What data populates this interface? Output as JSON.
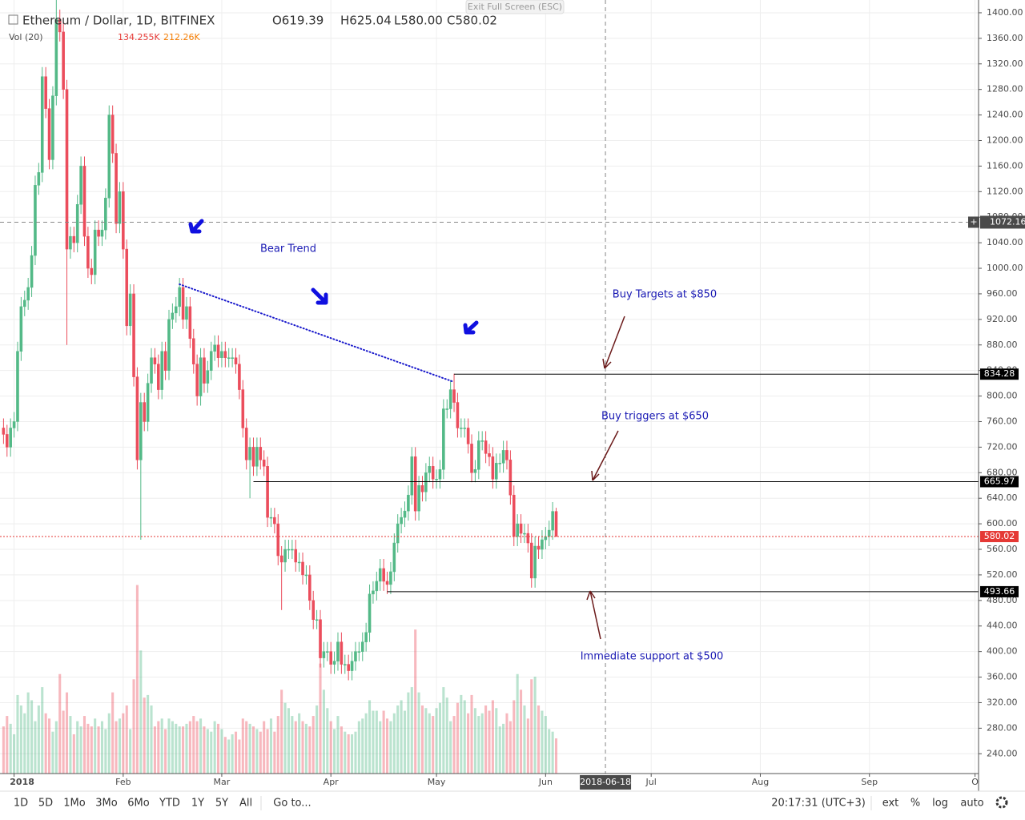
{
  "chart_data": {
    "type": "candlestick",
    "title": "Ethereum / Dollar, 1D, BITFINEX",
    "ohlc_legend": [
      "O619.39",
      "H625.04",
      "L580.00",
      "C580.02"
    ],
    "volume_title": "Vol (20)",
    "volume_legend": [
      "134.255K",
      "212.26K"
    ],
    "exit_button": "Exit Full Screen (ESC)",
    "up_color": "#53b987",
    "down_color": "#eb4d5c",
    "xlim": [
      "2017-12-28",
      "2018-10-02"
    ],
    "ylim": [
      209,
      1420
    ],
    "grid": true,
    "xticks": [
      {
        "value": "2018-01-01",
        "label": "2018"
      },
      {
        "value": "2018-02-01",
        "label": "Feb"
      },
      {
        "value": "2018-03-01",
        "label": "Mar"
      },
      {
        "value": "2018-04-01",
        "label": "Apr"
      },
      {
        "value": "2018-05-01",
        "label": "May"
      },
      {
        "value": "2018-06-01",
        "label": "Jun"
      },
      {
        "value": "2018-07-01",
        "label": "Jul"
      },
      {
        "value": "2018-08-01",
        "label": "Aug"
      },
      {
        "value": "2018-09-01",
        "label": "Sep"
      },
      {
        "value": "2018-10-01",
        "label": "O"
      }
    ],
    "yticks": [
      {
        "value": 240,
        "label": "240.00"
      },
      {
        "value": 280,
        "label": "280.00"
      },
      {
        "value": 320,
        "label": "320.00"
      },
      {
        "value": 360,
        "label": "360.00"
      },
      {
        "value": 400,
        "label": "400.00"
      },
      {
        "value": 440,
        "label": "440.00"
      },
      {
        "value": 480,
        "label": "480.00"
      },
      {
        "value": 520,
        "label": "520.00"
      },
      {
        "value": 560,
        "label": "560.00"
      },
      {
        "value": 600,
        "label": "600.00"
      },
      {
        "value": 640,
        "label": "640.00"
      },
      {
        "value": 680,
        "label": "680.00"
      },
      {
        "value": 720,
        "label": "720.00"
      },
      {
        "value": 760,
        "label": "760.00"
      },
      {
        "value": 800,
        "label": "800.00"
      },
      {
        "value": 840,
        "label": "840.00"
      },
      {
        "value": 880,
        "label": "880.00"
      },
      {
        "value": 920,
        "label": "920.00"
      },
      {
        "value": 960,
        "label": "960.00"
      },
      {
        "value": 1000,
        "label": "1000.00"
      },
      {
        "value": 1040,
        "label": "1040.00"
      },
      {
        "value": 1080,
        "label": "1080.00"
      },
      {
        "value": 1120,
        "label": "1120.00"
      },
      {
        "value": 1160,
        "label": "1160.00"
      },
      {
        "value": 1200,
        "label": "1200.00"
      },
      {
        "value": 1240,
        "label": "1240.00"
      },
      {
        "value": 1280,
        "label": "1280.00"
      },
      {
        "value": 1320,
        "label": "1320.00"
      },
      {
        "value": 1360,
        "label": "1360.00"
      },
      {
        "value": 1400,
        "label": "1400.00"
      }
    ],
    "x": [
      "2017-12-29",
      "2017-12-30",
      "2017-12-31",
      "2018-01-01",
      "2018-01-02",
      "2018-01-03",
      "2018-01-04",
      "2018-01-05",
      "2018-01-06",
      "2018-01-07",
      "2018-01-08",
      "2018-01-09",
      "2018-01-10",
      "2018-01-11",
      "2018-01-12",
      "2018-01-13",
      "2018-01-14",
      "2018-01-15",
      "2018-01-16",
      "2018-01-17",
      "2018-01-18",
      "2018-01-19",
      "2018-01-20",
      "2018-01-21",
      "2018-01-22",
      "2018-01-23",
      "2018-01-24",
      "2018-01-25",
      "2018-01-26",
      "2018-01-27",
      "2018-01-28",
      "2018-01-29",
      "2018-01-30",
      "2018-01-31",
      "2018-02-01",
      "2018-02-02",
      "2018-02-03",
      "2018-02-04",
      "2018-02-05",
      "2018-02-06",
      "2018-02-07",
      "2018-02-08",
      "2018-02-09",
      "2018-02-10",
      "2018-02-11",
      "2018-02-12",
      "2018-02-13",
      "2018-02-14",
      "2018-02-15",
      "2018-02-16",
      "2018-02-17",
      "2018-02-18",
      "2018-02-19",
      "2018-02-20",
      "2018-02-21",
      "2018-02-22",
      "2018-02-23",
      "2018-02-24",
      "2018-02-25",
      "2018-02-26",
      "2018-02-27",
      "2018-02-28",
      "2018-03-01",
      "2018-03-02",
      "2018-03-03",
      "2018-03-04",
      "2018-03-05",
      "2018-03-06",
      "2018-03-07",
      "2018-03-08",
      "2018-03-09",
      "2018-03-10",
      "2018-03-11",
      "2018-03-12",
      "2018-03-13",
      "2018-03-14",
      "2018-03-15",
      "2018-03-16",
      "2018-03-17",
      "2018-03-18",
      "2018-03-19",
      "2018-03-20",
      "2018-03-21",
      "2018-03-22",
      "2018-03-23",
      "2018-03-24",
      "2018-03-25",
      "2018-03-26",
      "2018-03-27",
      "2018-03-28",
      "2018-03-29",
      "2018-03-30",
      "2018-03-31",
      "2018-04-01",
      "2018-04-02",
      "2018-04-03",
      "2018-04-04",
      "2018-04-05",
      "2018-04-06",
      "2018-04-07",
      "2018-04-08",
      "2018-04-09",
      "2018-04-10",
      "2018-04-11",
      "2018-04-12",
      "2018-04-13",
      "2018-04-14",
      "2018-04-15",
      "2018-04-16",
      "2018-04-17",
      "2018-04-18",
      "2018-04-19",
      "2018-04-20",
      "2018-04-21",
      "2018-04-22",
      "2018-04-23",
      "2018-04-24",
      "2018-04-25",
      "2018-04-26",
      "2018-04-27",
      "2018-04-28",
      "2018-04-29",
      "2018-04-30",
      "2018-05-01",
      "2018-05-02",
      "2018-05-03",
      "2018-05-04",
      "2018-05-05",
      "2018-05-06",
      "2018-05-07",
      "2018-05-08",
      "2018-05-09",
      "2018-05-10",
      "2018-05-11",
      "2018-05-12",
      "2018-05-13",
      "2018-05-14",
      "2018-05-15",
      "2018-05-16",
      "2018-05-17",
      "2018-05-18",
      "2018-05-19",
      "2018-05-20",
      "2018-05-21",
      "2018-05-22",
      "2018-05-23",
      "2018-05-24",
      "2018-05-25",
      "2018-05-26",
      "2018-05-27",
      "2018-05-28",
      "2018-05-29",
      "2018-05-30",
      "2018-05-31",
      "2018-06-01",
      "2018-06-02",
      "2018-06-03",
      "2018-06-04"
    ],
    "open": [
      750,
      740,
      720,
      750,
      760,
      870,
      940,
      950,
      970,
      1020,
      1130,
      1150,
      1300,
      1250,
      1170,
      1270,
      1390,
      1370,
      1280,
      1030,
      1050,
      1040,
      1100,
      1160,
      1050,
      1000,
      990,
      1060,
      1050,
      1060,
      1110,
      1240,
      1180,
      1070,
      1120,
      1030,
      910,
      960,
      830,
      700,
      790,
      760,
      820,
      860,
      850,
      810,
      870,
      840,
      920,
      930,
      940,
      970,
      920,
      940,
      890,
      850,
      800,
      860,
      820,
      840,
      870,
      880,
      860,
      870,
      860,
      860,
      860,
      850,
      810,
      750,
      700,
      720,
      690,
      720,
      700,
      690,
      610,
      610,
      600,
      550,
      540,
      560,
      560,
      560,
      540,
      540,
      520,
      520,
      480,
      450,
      450,
      390,
      400,
      400,
      380,
      385,
      415,
      380,
      380,
      370,
      385,
      400,
      400,
      415,
      430,
      490,
      495,
      510,
      530,
      510,
      505,
      525,
      570,
      600,
      610,
      620,
      645,
      705,
      620,
      660,
      650,
      680,
      690,
      670,
      670,
      685,
      780,
      780,
      810,
      790,
      750,
      750,
      750,
      725,
      680,
      685,
      730,
      730,
      710,
      705,
      670,
      695,
      695,
      715,
      700,
      645,
      580,
      600,
      585,
      585,
      570,
      515,
      565,
      560,
      575,
      580,
      590,
      619.39
    ],
    "high": [
      765,
      755,
      765,
      775,
      885,
      955,
      965,
      985,
      1035,
      1145,
      1165,
      1315,
      1315,
      1265,
      1285,
      1420,
      1405,
      1385,
      1295,
      1065,
      1065,
      1115,
      1175,
      1175,
      1065,
      1015,
      1075,
      1075,
      1075,
      1125,
      1255,
      1255,
      1195,
      1135,
      1135,
      1045,
      975,
      975,
      845,
      805,
      805,
      835,
      875,
      875,
      865,
      885,
      885,
      935,
      945,
      955,
      985,
      985,
      955,
      955,
      905,
      865,
      875,
      875,
      855,
      885,
      895,
      895,
      885,
      885,
      875,
      875,
      875,
      865,
      825,
      765,
      735,
      735,
      735,
      735,
      715,
      705,
      625,
      625,
      615,
      565,
      575,
      575,
      575,
      575,
      555,
      555,
      535,
      535,
      495,
      465,
      465,
      415,
      415,
      415,
      400,
      430,
      430,
      395,
      395,
      400,
      415,
      415,
      430,
      445,
      505,
      510,
      525,
      545,
      545,
      525,
      540,
      585,
      615,
      625,
      635,
      660,
      720,
      720,
      675,
      675,
      695,
      705,
      705,
      685,
      700,
      795,
      795,
      825,
      835,
      805,
      765,
      765,
      765,
      740,
      700,
      745,
      745,
      745,
      725,
      720,
      710,
      710,
      730,
      730,
      715,
      660,
      615,
      615,
      600,
      600,
      585,
      580,
      580,
      590,
      595,
      605,
      634,
      625.04
    ],
    "low": [
      725,
      705,
      705,
      735,
      745,
      855,
      925,
      935,
      955,
      1005,
      1115,
      1135,
      1235,
      1155,
      1155,
      1255,
      1355,
      1265,
      880,
      1015,
      1025,
      1025,
      1085,
      1035,
      985,
      975,
      975,
      1035,
      1035,
      1045,
      1095,
      1165,
      1055,
      1055,
      1015,
      895,
      895,
      815,
      685,
      575,
      745,
      745,
      805,
      835,
      795,
      795,
      825,
      825,
      905,
      915,
      925,
      905,
      905,
      875,
      835,
      785,
      785,
      805,
      805,
      825,
      855,
      845,
      845,
      845,
      845,
      845,
      835,
      795,
      735,
      685,
      640,
      675,
      675,
      685,
      675,
      595,
      595,
      585,
      535,
      465,
      525,
      545,
      545,
      525,
      525,
      505,
      505,
      465,
      435,
      435,
      375,
      375,
      385,
      365,
      365,
      370,
      365,
      365,
      355,
      355,
      370,
      385,
      385,
      400,
      415,
      475,
      480,
      495,
      495,
      490,
      490,
      510,
      555,
      585,
      595,
      605,
      630,
      605,
      605,
      635,
      635,
      665,
      655,
      655,
      655,
      670,
      765,
      765,
      775,
      735,
      735,
      735,
      710,
      665,
      665,
      670,
      715,
      695,
      690,
      655,
      655,
      680,
      680,
      685,
      630,
      565,
      565,
      570,
      570,
      555,
      500,
      500,
      545,
      545,
      560,
      565,
      575,
      580
    ],
    "close": [
      740,
      720,
      750,
      760,
      870,
      940,
      950,
      970,
      1020,
      1130,
      1150,
      1300,
      1250,
      1170,
      1270,
      1390,
      1370,
      1280,
      1030,
      1050,
      1040,
      1100,
      1160,
      1050,
      1000,
      990,
      1060,
      1050,
      1060,
      1110,
      1240,
      1180,
      1070,
      1120,
      1030,
      910,
      960,
      830,
      700,
      790,
      760,
      820,
      860,
      850,
      810,
      870,
      840,
      920,
      930,
      940,
      970,
      920,
      940,
      890,
      850,
      800,
      860,
      820,
      840,
      870,
      880,
      860,
      870,
      860,
      860,
      860,
      850,
      810,
      750,
      700,
      720,
      690,
      720,
      700,
      690,
      610,
      610,
      600,
      550,
      540,
      560,
      560,
      560,
      540,
      540,
      520,
      520,
      480,
      450,
      450,
      390,
      400,
      400,
      380,
      385,
      415,
      380,
      380,
      370,
      385,
      400,
      400,
      415,
      430,
      490,
      495,
      510,
      530,
      510,
      505,
      525,
      570,
      600,
      610,
      620,
      645,
      705,
      620,
      660,
      650,
      680,
      690,
      670,
      670,
      685,
      780,
      780,
      810,
      790,
      750,
      750,
      750,
      725,
      680,
      685,
      730,
      730,
      710,
      705,
      670,
      695,
      695,
      715,
      700,
      645,
      580,
      600,
      585,
      585,
      570,
      515,
      565,
      560,
      575,
      580,
      590,
      619.39,
      580.02
    ],
    "volume": [
      180,
      220,
      190,
      150,
      300,
      260,
      230,
      310,
      280,
      200,
      260,
      330,
      230,
      210,
      160,
      200,
      380,
      240,
      310,
      220,
      150,
      200,
      180,
      220,
      190,
      180,
      210,
      180,
      200,
      170,
      230,
      310,
      200,
      210,
      230,
      260,
      170,
      360,
      720,
      470,
      290,
      300,
      260,
      180,
      200,
      210,
      170,
      210,
      200,
      190,
      180,
      180,
      190,
      200,
      220,
      200,
      210,
      180,
      170,
      160,
      200,
      190,
      170,
      140,
      130,
      150,
      160,
      130,
      210,
      200,
      190,
      180,
      170,
      160,
      200,
      170,
      210,
      160,
      220,
      320,
      270,
      250,
      220,
      200,
      230,
      200,
      190,
      180,
      220,
      260,
      420,
      320,
      250,
      200,
      170,
      220,
      180,
      160,
      150,
      150,
      160,
      200,
      210,
      230,
      280,
      240,
      240,
      200,
      240,
      210,
      200,
      230,
      260,
      280,
      240,
      310,
      330,
      550,
      310,
      260,
      250,
      230,
      220,
      250,
      270,
      330,
      290,
      200,
      220,
      270,
      300,
      280,
      230,
      300,
      250,
      220,
      230,
      260,
      240,
      280,
      250,
      180,
      190,
      230,
      200,
      280,
      380,
      320,
      260,
      210,
      360,
      370,
      260,
      240,
      220,
      170,
      160,
      134.255
    ],
    "trendline": {
      "x": [
        "2018-02-17",
        "2018-05-06"
      ],
      "y": [
        975,
        822
      ],
      "color": "#1a1acc"
    },
    "levels": [
      {
        "value": 834.28,
        "from": "2018-05-06",
        "color": "#000000"
      },
      {
        "value": 665.97,
        "from": "2018-03-10",
        "color": "#000000"
      },
      {
        "value": 493.66,
        "from": "2018-04-17",
        "color": "#000000"
      },
      {
        "value": 580.02,
        "color": "#e53935"
      }
    ],
    "crosshair": {
      "x": "2018-06-18",
      "y": 1072.16
    },
    "annotations": [
      "Bear Trend",
      "Buy Targets at $850",
      "Buy triggers at $650",
      "Immediate support at $500"
    ],
    "toolbar": [
      "1D",
      "5D",
      "1Mo",
      "3Mo",
      "6Mo",
      "YTD",
      "1Y",
      "5Y",
      "All",
      "Go to..."
    ],
    "clock": "20:17:31 (UTC+3)",
    "toolbar_right": [
      "ext",
      "%",
      "log",
      "auto"
    ]
  }
}
